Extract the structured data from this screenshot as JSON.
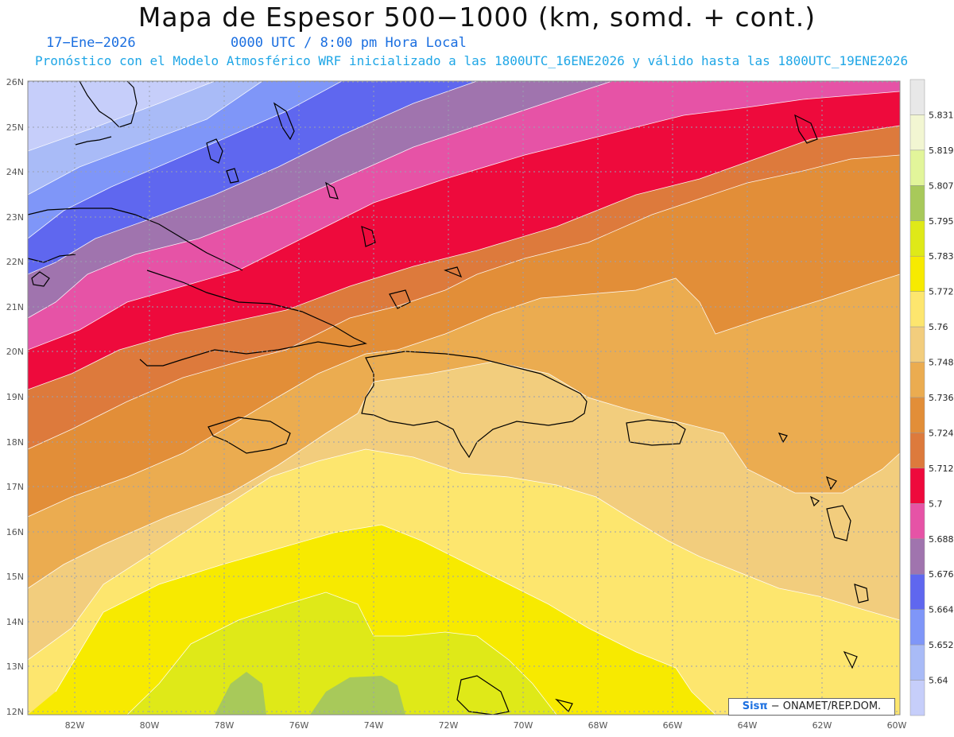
{
  "header": {
    "title": "Mapa de Espesor 500−1000 (km, somd. + cont.)",
    "date": "17−Ene−2026",
    "time": "0000 UTC / 8:00 pm Hora Local",
    "forecast": "Pronóstico con el Modelo Atmosférico WRF inicializado a las 1800UTC_16ENE2026 y válido hasta las  1800UTC_19ENE2026"
  },
  "map": {
    "lat_labels": [
      "26N",
      "25N",
      "24N",
      "23N",
      "22N",
      "21N",
      "20N",
      "19N",
      "18N",
      "17N",
      "16N",
      "15N",
      "14N",
      "13N",
      "12N"
    ],
    "lon_labels": [
      "82W",
      "80W",
      "78W",
      "76W",
      "74W",
      "72W",
      "70W",
      "68W",
      "66W",
      "64W",
      "62W",
      "60W"
    ]
  },
  "colorbar": {
    "levels": [
      "5.831",
      "5.819",
      "5.807",
      "5.795",
      "5.783",
      "5.772",
      "5.76",
      "5.748",
      "5.736",
      "5.724",
      "5.712",
      "5.7",
      "5.688",
      "5.676",
      "5.664",
      "5.652",
      "5.64"
    ],
    "colors": [
      "#e8e8e8",
      "#f2f6d2",
      "#e2f59a",
      "#a8c95a",
      "#dfe918",
      "#f7ea00",
      "#fde66e",
      "#f2cd7d",
      "#ebac50",
      "#e28e38",
      "#dd7a3c",
      "#ee0a3c",
      "#e653a6",
      "#a074ae",
      "#5f67ef",
      "#7f96f8",
      "#a9bbf7",
      "#c6cefa"
    ]
  },
  "footer": {
    "brand": "Sisπ",
    "org": "− ONAMET/REP.DOM."
  }
}
